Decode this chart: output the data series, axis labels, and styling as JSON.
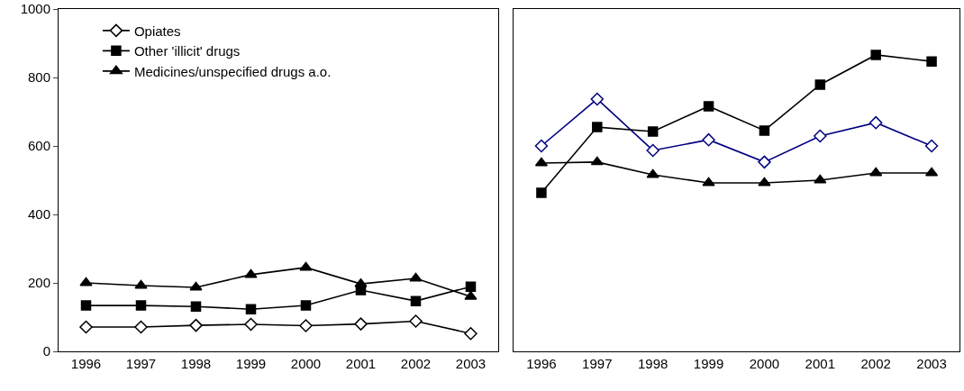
{
  "chart_data": [
    {
      "type": "line",
      "categories": [
        "1996",
        "1997",
        "1998",
        "1999",
        "2000",
        "2001",
        "2002",
        "2003"
      ],
      "ylim": [
        0,
        1000
      ],
      "yticks": [
        0,
        200,
        400,
        600,
        800,
        1000
      ],
      "legend": "top left",
      "series": [
        {
          "name": "Opiates",
          "color": "#000000",
          "marker": "diamond",
          "values": [
            71,
            71,
            76,
            79,
            75,
            80,
            88,
            52
          ]
        },
        {
          "name": "Other 'illicit' drugs",
          "color": "#000000",
          "marker": "square",
          "values": [
            134,
            134,
            131,
            123,
            134,
            179,
            147,
            189
          ]
        },
        {
          "name": "Medicines/unspecified drugs a.o.",
          "color": "#000000",
          "marker": "triangle",
          "values": [
            200,
            192,
            187,
            224,
            245,
            197,
            213,
            160
          ]
        }
      ]
    },
    {
      "type": "line",
      "categories": [
        "1996",
        "1997",
        "1998",
        "1999",
        "2000",
        "2001",
        "2002",
        "2003"
      ],
      "ylim": [
        0,
        1000
      ],
      "yticks": [
        0,
        200,
        400,
        600,
        800,
        1000
      ],
      "tick_labels": "x",
      "series": [
        {
          "color": "#000080",
          "marker": "diamond",
          "values": [
            600,
            737,
            587,
            618,
            553,
            629,
            668,
            600
          ]
        },
        {
          "color": "#000000",
          "marker": "square",
          "values": [
            463,
            655,
            642,
            716,
            645,
            779,
            866,
            847
          ]
        },
        {
          "color": "#000000",
          "marker": "triangle",
          "values": [
            550,
            553,
            516,
            492,
            492,
            500,
            521,
            521
          ]
        }
      ]
    }
  ]
}
